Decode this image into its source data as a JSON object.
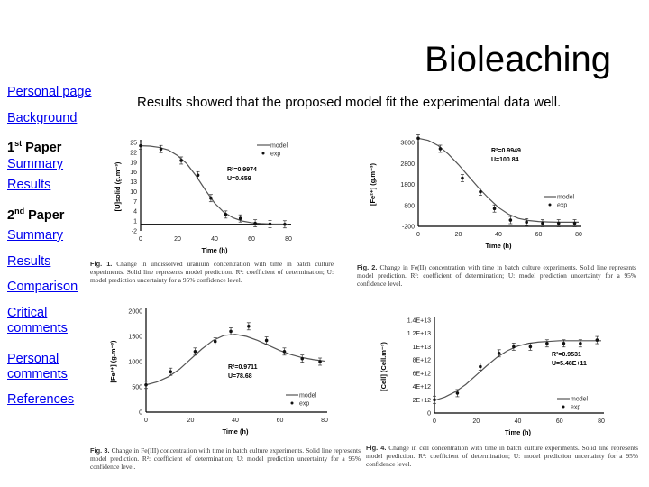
{
  "slide": {
    "title": "Bioleaching",
    "subtitle": "Results showed that the proposed model fit the experimental data well."
  },
  "nav": {
    "personal_page": "Personal page",
    "background": "Background",
    "paper1_num": "1",
    "paper1_sup": "st",
    "paper1_label": " Paper",
    "paper1_summary": "Summary",
    "paper1_results": "Results",
    "paper2_num": "2",
    "paper2_sup": "nd",
    "paper2_label": " Paper",
    "paper2_summary": "Summary",
    "paper2_results": "Results",
    "comparison": "Comparison",
    "critical_1": "Critical",
    "critical_2": "comments",
    "personal_1": "Personal",
    "personal_2": "comments",
    "references": "References",
    "link_color": "#0000ee"
  },
  "chart_data": [
    {
      "type": "line",
      "caption_label": "Fig. 1.",
      "caption_text": " Change in undissolved uranium concentration with time in batch culture experiments. Solid line represents model prediction. R²: coefficient of determination; U: model prediction uncertainty for a 95% confidence level.",
      "xlabel": "Time (h)",
      "ylabel": "[U]solid (g.m⁻³)",
      "xlim": [
        0,
        80
      ],
      "ylim": [
        -2,
        25
      ],
      "xticks": [
        "0",
        "20",
        "40",
        "60",
        "80"
      ],
      "yticks": [
        "25",
        "22",
        "19",
        "16",
        "13",
        "10",
        "7",
        "4",
        "1",
        "-2"
      ],
      "stats": [
        "R²=0.9974",
        "U=0.659"
      ],
      "legend": [
        "model",
        "exp"
      ],
      "legend_position": "top-right",
      "series": [
        {
          "name": "model",
          "kind": "line",
          "x": [
            0,
            5,
            10,
            15,
            20,
            25,
            30,
            35,
            40,
            45,
            50,
            55,
            60,
            65,
            70,
            75,
            80
          ],
          "y": [
            24,
            23.9,
            23.5,
            22.7,
            21,
            18.5,
            14.8,
            10.5,
            6.5,
            3.7,
            2.0,
            1.0,
            0.5,
            0.25,
            0.12,
            0.06,
            0.03
          ]
        },
        {
          "name": "exp",
          "kind": "scatter",
          "x": [
            0,
            11,
            22,
            31,
            38,
            46,
            54,
            62,
            70,
            78
          ],
          "y": [
            24,
            23,
            19.5,
            15,
            8,
            3,
            1.8,
            0.3,
            0.1,
            0
          ]
        }
      ]
    },
    {
      "type": "line",
      "caption_label": "Fig. 2.",
      "caption_text": " Change in Fe(II) concentration with time in batch culture experiments. Solid line represents model prediction. R²: coefficient of determination; U: model prediction uncertainty for a 95% confidence level.",
      "xlabel": "Time (h)",
      "ylabel": "[Fe²⁺] (g.m⁻³)",
      "xlim": [
        0,
        80
      ],
      "ylim": [
        -200,
        3800
      ],
      "xticks": [
        "0",
        "20",
        "40",
        "60",
        "80"
      ],
      "yticks": [
        "3800",
        "2800",
        "1800",
        "800",
        "-200"
      ],
      "stats": [
        "R²=0.9949",
        "U=100.84"
      ],
      "legend": [
        "model",
        "exp"
      ],
      "legend_position": "right",
      "series": [
        {
          "name": "model",
          "kind": "line",
          "x": [
            0,
            5,
            10,
            15,
            20,
            25,
            30,
            35,
            40,
            45,
            50,
            55,
            60,
            65,
            70,
            75,
            80
          ],
          "y": [
            4000,
            3900,
            3650,
            3250,
            2750,
            2200,
            1650,
            1150,
            700,
            380,
            180,
            80,
            30,
            10,
            0,
            0,
            0
          ]
        },
        {
          "name": "exp",
          "kind": "scatter",
          "x": [
            0,
            11,
            22,
            31,
            38,
            46,
            54,
            62,
            70,
            78
          ],
          "y": [
            4000,
            3500,
            2100,
            1450,
            650,
            100,
            0,
            -50,
            -50,
            -50
          ]
        }
      ]
    },
    {
      "type": "line",
      "caption_label": "Fig. 3.",
      "caption_text": " Change in Fe(III) concentration with time in batch culture experiments. Solid line represents model prediction. R²: coefficient of determination; U: model prediction uncertainty for a 95% confidence level.",
      "xlabel": "Time (h)",
      "ylabel": "[Fe³⁺] (g.m⁻³)",
      "xlim": [
        0,
        80
      ],
      "ylim": [
        0,
        2000
      ],
      "xticks": [
        "0",
        "20",
        "40",
        "60",
        "80"
      ],
      "yticks": [
        "2000",
        "1500",
        "1000",
        "500",
        "0"
      ],
      "stats": [
        "R²=0.9711",
        "U=78.68"
      ],
      "legend": [
        "model",
        "exp"
      ],
      "legend_position": "bottom-right",
      "series": [
        {
          "name": "model",
          "kind": "line",
          "x": [
            0,
            5,
            10,
            15,
            20,
            25,
            30,
            35,
            40,
            45,
            50,
            55,
            60,
            65,
            70,
            75,
            80
          ],
          "y": [
            540,
            600,
            700,
            850,
            1050,
            1250,
            1420,
            1520,
            1540,
            1500,
            1420,
            1320,
            1220,
            1140,
            1080,
            1040,
            1010
          ]
        },
        {
          "name": "exp",
          "kind": "scatter",
          "x": [
            0,
            11,
            22,
            31,
            38,
            46,
            54,
            62,
            70,
            78
          ],
          "y": [
            540,
            800,
            1200,
            1400,
            1600,
            1700,
            1420,
            1200,
            1060,
            1000
          ]
        }
      ]
    },
    {
      "type": "line",
      "caption_label": "Fig. 4.",
      "caption_text": " Change in cell concentration with time in batch culture experiments. Solid line represents model prediction. R²: coefficient of determination; U: model prediction uncertainty for a 95% confidence level.",
      "xlabel": "Time (h)",
      "ylabel": "[Cell] (Cell.m⁻³)",
      "xlim": [
        0,
        80
      ],
      "ylim": [
        0,
        14000000000000.0
      ],
      "xticks": [
        "0",
        "20",
        "40",
        "60",
        "80"
      ],
      "yticks": [
        "1.4E+13",
        "1.2E+13",
        "1E+13",
        "8E+12",
        "6E+12",
        "4E+12",
        "2E+12",
        "0"
      ],
      "stats": [
        "R²=0.9531",
        "U=5.48E+11"
      ],
      "legend": [
        "model",
        "exp"
      ],
      "legend_position": "bottom-right",
      "series": [
        {
          "name": "model",
          "kind": "line",
          "x": [
            0,
            5,
            10,
            15,
            20,
            25,
            30,
            35,
            40,
            45,
            50,
            55,
            60,
            65,
            70,
            75,
            80
          ],
          "y": [
            1900000000000.0,
            2400000000000.0,
            3200000000000.0,
            4300000000000.0,
            5700000000000.0,
            7100000000000.0,
            8400000000000.0,
            9400000000000.0,
            10100000000000.0,
            10500000000000.0,
            10700000000000.0,
            10800000000000.0,
            10900000000000.0,
            10900000000000.0,
            10900000000000.0,
            10900000000000.0,
            10900000000000.0
          ]
        },
        {
          "name": "exp",
          "kind": "scatter",
          "x": [
            0,
            11,
            22,
            31,
            38,
            46,
            54,
            62,
            70,
            78
          ],
          "y": [
            2000000000000.0,
            3000000000000.0,
            7000000000000.0,
            9000000000000.0,
            10000000000000.0,
            10000000000000.0,
            10500000000000.0,
            10500000000000.0,
            10500000000000.0,
            11000000000000.0
          ]
        }
      ]
    }
  ]
}
